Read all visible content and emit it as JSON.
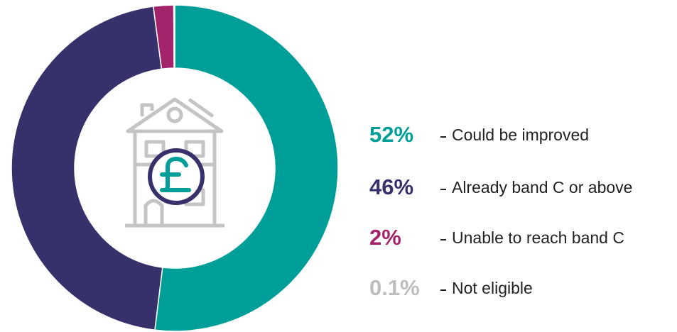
{
  "chart_data": {
    "type": "donut",
    "categories": [
      "Could be improved",
      "Already band C or above",
      "Unable to reach band C",
      "Not eligible"
    ],
    "values": [
      52,
      46,
      2,
      0.1
    ],
    "value_labels": [
      "52%",
      "46%",
      "2%",
      "0.1%"
    ],
    "colors": [
      "#009e98",
      "#36306b",
      "#a3246b",
      "#bdbdbd"
    ]
  }
}
